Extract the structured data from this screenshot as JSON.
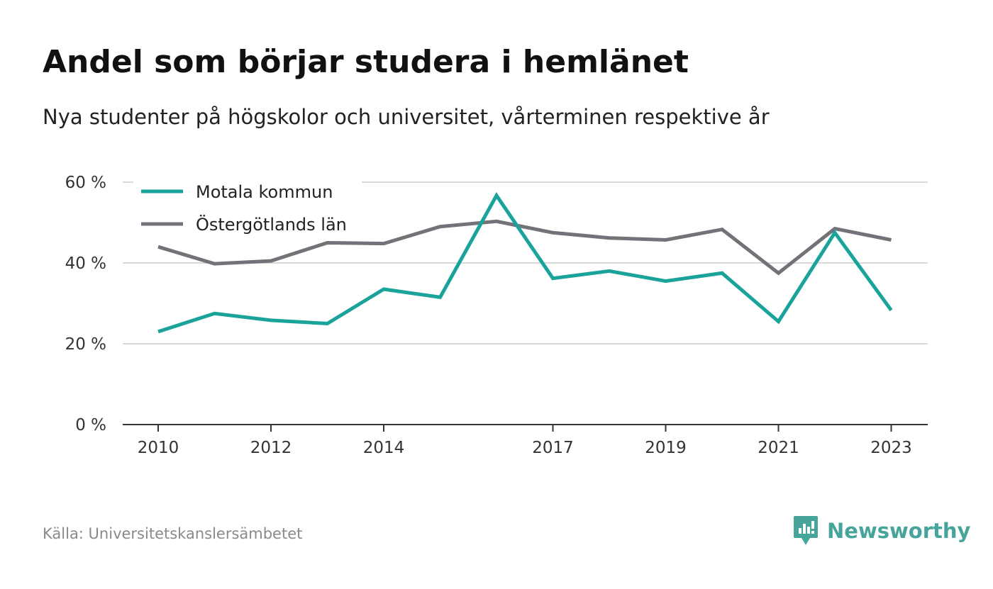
{
  "header": {
    "title": "Andel som börjar studera i hemlänet",
    "subtitle": "Nya studenter på högskolor och universitet, vårterminen respektive år"
  },
  "footer": {
    "source": "Källa: Universitetskanslersämbetet",
    "brand": "Newsworthy",
    "brand_icon": "newsworthy-logo-icon",
    "brand_color": "#46a49a"
  },
  "chart_data": {
    "type": "line",
    "title": "Andel som börjar studera i hemlänet",
    "subtitle": "Nya studenter på högskolor och universitet, vårterminen respektive år",
    "x": [
      2010,
      2011,
      2012,
      2013,
      2014,
      2015,
      2016,
      2017,
      2018,
      2019,
      2020,
      2021,
      2022,
      2023
    ],
    "x_tick_labels": [
      "2010",
      "2012",
      "2014",
      "2017",
      "2019",
      "2021",
      "2023"
    ],
    "y_tick_labels": [
      "0 %",
      "20 %",
      "40 %",
      "60 %"
    ],
    "y_ticks": [
      0,
      20,
      40,
      60
    ],
    "ylim": [
      0,
      60
    ],
    "grid": true,
    "legend_position": "top-left",
    "series": [
      {
        "name": "Motala kommun",
        "color": "#1aa39a",
        "values": [
          23.0,
          27.5,
          25.8,
          25.0,
          33.5,
          31.5,
          56.7,
          36.2,
          38.0,
          35.5,
          37.5,
          25.5,
          47.5,
          28.3
        ]
      },
      {
        "name": "Östergötlands län",
        "color": "#737278",
        "values": [
          44.0,
          39.8,
          40.5,
          45.0,
          44.8,
          49.0,
          50.3,
          47.5,
          46.2,
          45.7,
          48.3,
          37.5,
          48.5,
          45.7
        ]
      }
    ]
  }
}
